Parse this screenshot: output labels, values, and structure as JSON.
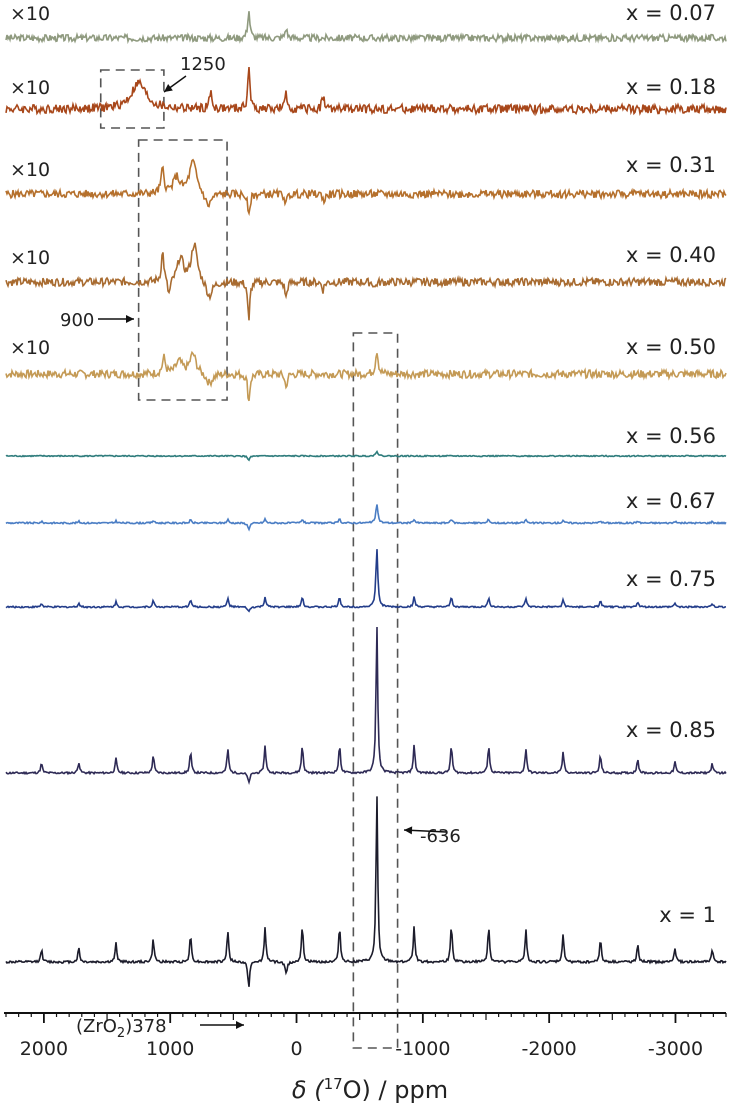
{
  "chart_data": {
    "type": "line",
    "title": "",
    "xlabel": {
      "pre": "δ (",
      "sup": "17",
      "post": "O) / ppm"
    },
    "x_axis": {
      "reversed": true,
      "xlim": [
        2300,
        -3400
      ],
      "ticks": [
        2000,
        1000,
        0,
        -1000,
        -2000,
        -3000
      ],
      "tick_labels": [
        "2000",
        "1000",
        "0",
        "-1000",
        "-2000",
        "-3000"
      ]
    },
    "spinning_sideband_spacing_ppm": 295,
    "series": [
      {
        "label": "x = 0.07",
        "scale_label": "×10",
        "color": "#8f9a7f",
        "peaks": [
          {
            "x": 378,
            "height": 28,
            "sign": 1,
            "width": 10
          },
          {
            "x": 83,
            "height": 10,
            "sign": 1,
            "width": 10
          }
        ]
      },
      {
        "label": "x = 0.18",
        "scale_label": "×10",
        "color": "#a8471a",
        "peaks": [
          {
            "x": 1250,
            "height": 26,
            "sign": 1,
            "width": 70
          },
          {
            "x": 680,
            "height": 16,
            "sign": 1,
            "width": 12
          },
          {
            "x": 378,
            "height": 46,
            "sign": 1,
            "width": 9
          },
          {
            "x": 83,
            "height": 14,
            "sign": 1,
            "width": 10
          },
          {
            "x": -210,
            "height": 14,
            "sign": 1,
            "width": 10
          }
        ]
      },
      {
        "label": "x = 0.31",
        "scale_label": "×10",
        "color": "#b5702c",
        "peaks": [
          {
            "x": 1060,
            "height": 24,
            "sign": 1,
            "width": 14
          },
          {
            "x": 950,
            "height": 16,
            "sign": 1,
            "width": 30
          },
          {
            "x": 820,
            "height": 32,
            "sign": 1,
            "width": 35
          },
          {
            "x": 700,
            "height": 14,
            "sign": -1,
            "width": 30
          },
          {
            "x": 378,
            "height": 24,
            "sign": -1,
            "width": 10
          },
          {
            "x": 83,
            "height": 10,
            "sign": -1,
            "width": 10
          },
          {
            "x": -220,
            "height": 8,
            "sign": -1,
            "width": 10
          }
        ]
      },
      {
        "label": "x = 0.40",
        "scale_label": "×10",
        "color": "#a86b30",
        "peaks": [
          {
            "x": 1060,
            "height": 30,
            "sign": 1,
            "width": 12
          },
          {
            "x": 1010,
            "height": 16,
            "sign": -1,
            "width": 14
          },
          {
            "x": 920,
            "height": 24,
            "sign": 1,
            "width": 28
          },
          {
            "x": 810,
            "height": 38,
            "sign": 1,
            "width": 28
          },
          {
            "x": 690,
            "height": 16,
            "sign": -1,
            "width": 30
          },
          {
            "x": 378,
            "height": 42,
            "sign": -1,
            "width": 9
          },
          {
            "x": 83,
            "height": 16,
            "sign": -1,
            "width": 10
          },
          {
            "x": -210,
            "height": 8,
            "sign": -1,
            "width": 10
          },
          {
            "x": -620,
            "height": 6,
            "sign": -1,
            "width": 10
          }
        ]
      },
      {
        "label": "x = 0.50",
        "scale_label": "×10",
        "color": "#c49a55",
        "peaks": [
          {
            "x": 1050,
            "height": 16,
            "sign": 1,
            "width": 14
          },
          {
            "x": 930,
            "height": 12,
            "sign": 1,
            "width": 30
          },
          {
            "x": 820,
            "height": 20,
            "sign": 1,
            "width": 30
          },
          {
            "x": 690,
            "height": 10,
            "sign": -1,
            "width": 30
          },
          {
            "x": 378,
            "height": 28,
            "sign": -1,
            "width": 10
          },
          {
            "x": 83,
            "height": 14,
            "sign": -1,
            "width": 10
          },
          {
            "x": -636,
            "height": 24,
            "sign": 1,
            "width": 12
          }
        ]
      },
      {
        "label": "x = 0.56",
        "scale_label": "",
        "color": "#2e7c7c",
        "peaks": [
          {
            "x": -636,
            "height": 5,
            "sign": 1,
            "width": 10
          },
          {
            "x": 378,
            "height": 4,
            "sign": -1,
            "width": 10
          }
        ]
      },
      {
        "label": "x = 0.67",
        "scale_label": "",
        "color": "#4a7dc4",
        "peaks": [
          {
            "x": -636,
            "height": 18,
            "sign": 1,
            "width": 10
          },
          {
            "x": 378,
            "height": 6,
            "sign": -1,
            "width": 10
          }
        ],
        "sidebands": {
          "height": 4
        }
      },
      {
        "label": "x = 0.75",
        "scale_label": "",
        "color": "#233d8a",
        "peaks": [
          {
            "x": -636,
            "height": 58,
            "sign": 1,
            "width": 9
          },
          {
            "x": 378,
            "height": 5,
            "sign": -1,
            "width": 10
          }
        ],
        "sidebands": {
          "height": 10
        }
      },
      {
        "label": "x = 0.85",
        "scale_label": "",
        "color": "#2e2a55",
        "peaks": [
          {
            "x": -636,
            "height": 148,
            "sign": 1,
            "width": 8
          },
          {
            "x": 378,
            "height": 10,
            "sign": -1,
            "width": 10
          }
        ],
        "sidebands": {
          "height": 28
        }
      },
      {
        "label": "x = 1",
        "scale_label": "",
        "color": "#1c1c2b",
        "peaks": [
          {
            "x": -636,
            "height": 168,
            "sign": 1,
            "width": 8
          },
          {
            "x": 378,
            "height": 26,
            "sign": -1,
            "width": 8
          },
          {
            "x": 83,
            "height": 12,
            "sign": -1,
            "width": 10
          }
        ],
        "sidebands": {
          "height": 36
        }
      }
    ],
    "annotations": [
      {
        "text": "1250",
        "target_x": 1250,
        "series": "x = 0.18"
      },
      {
        "text": "900",
        "target_x": 900,
        "series": "x = 0.40"
      },
      {
        "text": "-636",
        "target_x": -636,
        "series": "x = 1"
      },
      {
        "text": {
          "pre": "(ZrO",
          "sub": "2",
          "post": ")378"
        },
        "target_x": 378,
        "series": "x = 1"
      }
    ],
    "highlight_boxes": [
      {
        "x_range": [
          1550,
          1050
        ]
      },
      {
        "x_range": [
          1250,
          550
        ]
      },
      {
        "x_range": [
          -450,
          -800
        ]
      }
    ]
  }
}
